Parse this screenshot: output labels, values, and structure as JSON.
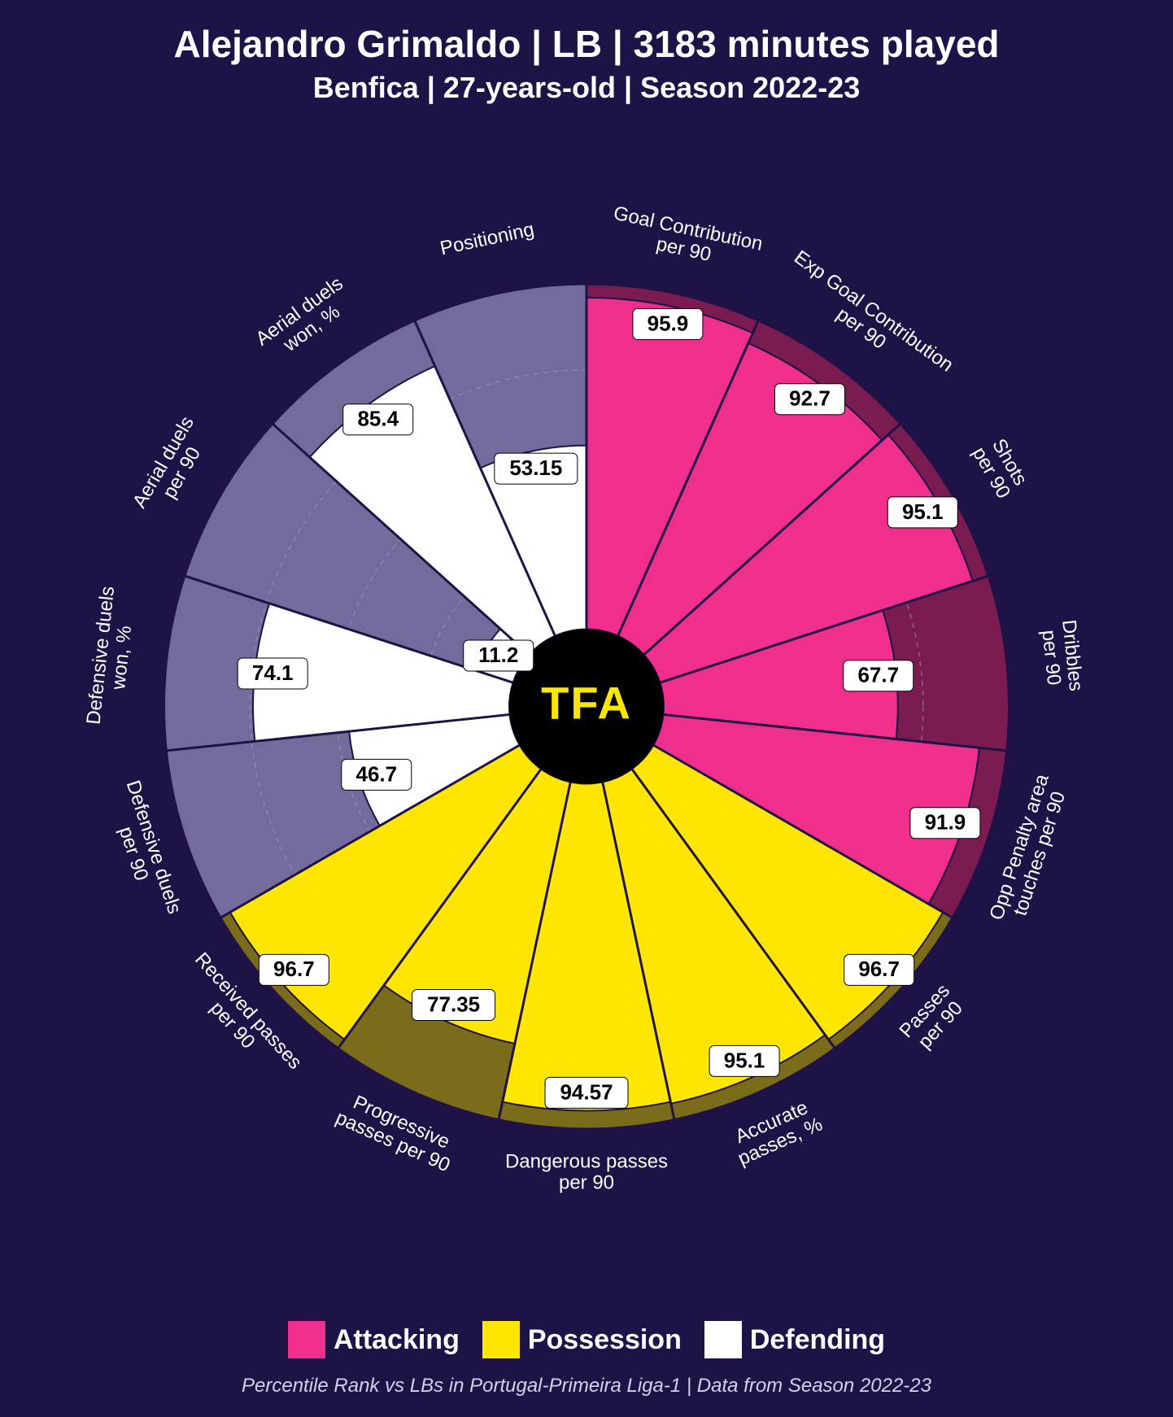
{
  "title": "Alejandro Grimaldo | LB | 3183 minutes played",
  "subtitle": "Benfica | 27-years-old | Season 2022-23",
  "caption": "Percentile Rank vs LBs in Portugal-Primeira Liga-1 | Data from Season 2022-23",
  "center_logo": "TFA",
  "background_color": "#1e1246",
  "categories": {
    "attacking": {
      "label": "Attacking",
      "fill": "#ef2f8b",
      "bg": "#7a1c50",
      "text": "#000000"
    },
    "possession": {
      "label": "Possession",
      "fill": "#ffe600",
      "bg": "#7a6c1a",
      "text": "#000000"
    },
    "defending": {
      "label": "Defending",
      "fill": "#ffffff",
      "bg": "#736b9b",
      "text": "#000000"
    }
  },
  "chart": {
    "type": "radial-bar",
    "outer_radius": 520,
    "inner_radius": 95,
    "label_radius": 560,
    "grid_radii_pct": [
      25,
      50,
      75
    ],
    "grid_color": "#aaa3c6",
    "grid_dash": "6 6",
    "separator_color": "#1e1246",
    "center_fill": "#000000",
    "center_logo_color": "#ffe600"
  },
  "metrics": [
    {
      "label": "Goal Contribution\nper 90",
      "value": 95.9,
      "category": "attacking"
    },
    {
      "label": "Exp Goal Contribution\nper 90",
      "value": 92.7,
      "category": "attacking"
    },
    {
      "label": "Shots\nper 90",
      "value": 95.1,
      "category": "attacking"
    },
    {
      "label": "Dribbles\nper 90",
      "value": 67.7,
      "category": "attacking"
    },
    {
      "label": "Opp Penalty area\ntouches per 90",
      "value": 91.9,
      "category": "attacking"
    },
    {
      "label": "Passes\nper 90",
      "value": 96.7,
      "category": "possession"
    },
    {
      "label": "Accurate\npasses, %",
      "value": 95.1,
      "category": "possession"
    },
    {
      "label": "Dangerous passes\nper 90",
      "value": 94.57,
      "category": "possession"
    },
    {
      "label": "Progressive\npasses per 90",
      "value": 77.35,
      "category": "possession"
    },
    {
      "label": "Received passes\nper 90",
      "value": 96.7,
      "category": "possession"
    },
    {
      "label": "Defensive duels\nper 90",
      "value": 46.7,
      "category": "defending"
    },
    {
      "label": "Defensive duels\nwon, %",
      "value": 74.1,
      "category": "defending"
    },
    {
      "label": "Aerial duels\nper 90",
      "value": 11.2,
      "category": "defending"
    },
    {
      "label": "Aerial duels\nwon, %",
      "value": 85.4,
      "category": "defending"
    },
    {
      "label": "Positioning",
      "value": 53.15,
      "category": "defending"
    }
  ],
  "legend": [
    {
      "key": "attacking"
    },
    {
      "key": "possession"
    },
    {
      "key": "defending"
    }
  ]
}
